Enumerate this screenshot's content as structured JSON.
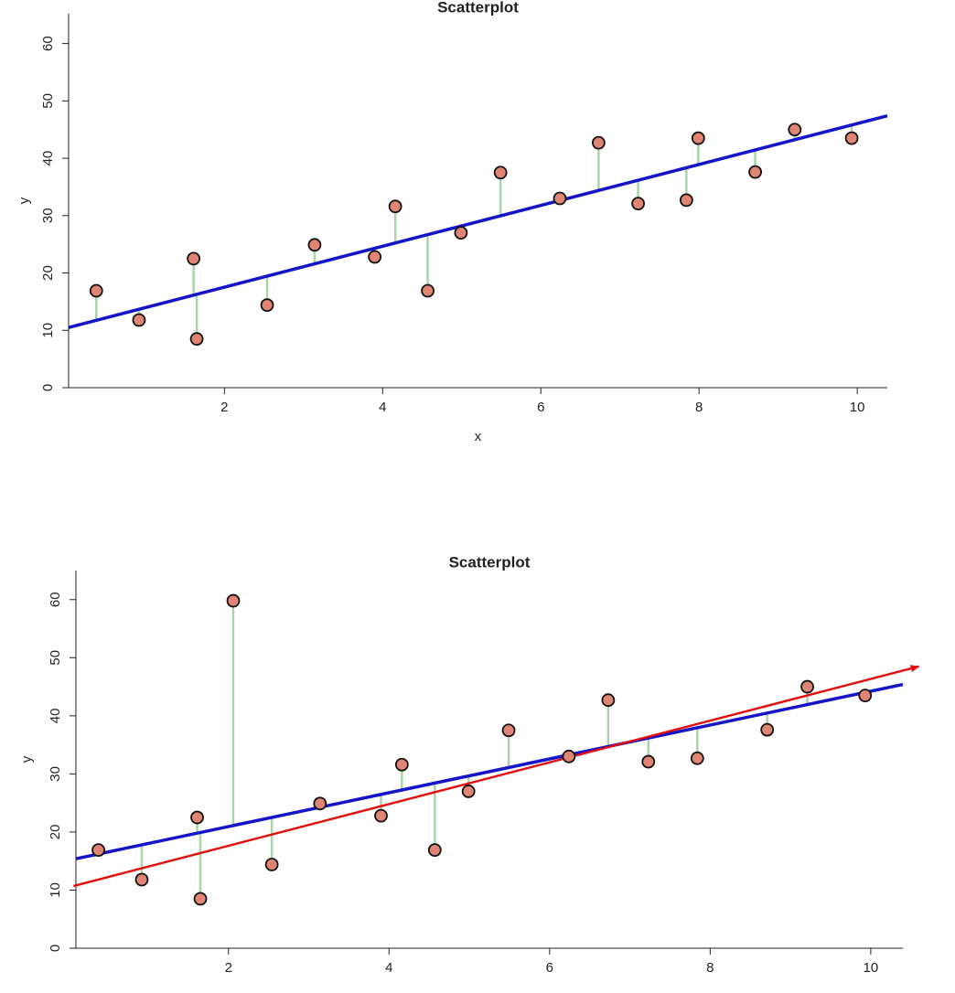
{
  "chart_data": [
    {
      "type": "scatter",
      "title": "Scatterplot",
      "x_label": "x",
      "y_label": "y",
      "xlim": [
        0.03,
        10.38
      ],
      "ylim": [
        0,
        65.2
      ],
      "xticks": [
        2,
        4,
        6,
        8,
        10
      ],
      "yticks": [
        0,
        10,
        20,
        30,
        40,
        50,
        60
      ],
      "series": [
        {
          "color": "#e08474",
          "x": [
            0.38,
            0.92,
            1.61,
            1.65,
            2.54,
            3.14,
            3.9,
            4.16,
            4.57,
            4.99,
            5.49,
            6.24,
            6.73,
            7.23,
            7.84,
            7.99,
            8.71,
            9.21,
            9.93
          ],
          "values": [
            16.9,
            11.8,
            22.5,
            8.5,
            14.4,
            24.9,
            22.8,
            31.6,
            16.9,
            27.0,
            37.5,
            33.0,
            42.7,
            32.1,
            32.7,
            43.5,
            37.6,
            45.0,
            43.5
          ]
        }
      ],
      "lines": [
        {
          "color": "#1414c8",
          "x": [
            0.03,
            10.38
          ],
          "values": [
            10.5,
            47.4
          ]
        }
      ],
      "residual_color": "#a8d4a8"
    },
    {
      "type": "scatter",
      "title": "Scatterplot",
      "y_label": "y",
      "xlim": [
        0.1,
        10.4
      ],
      "ylim": [
        0,
        65.0
      ],
      "xticks": [
        2,
        4,
        6,
        8,
        10
      ],
      "yticks": [
        0,
        10,
        20,
        30,
        40,
        50,
        60
      ],
      "series": [
        {
          "color": "#e08474",
          "x": [
            0.38,
            0.92,
            1.61,
            1.65,
            2.06,
            2.54,
            3.14,
            3.9,
            4.16,
            4.57,
            4.99,
            5.49,
            6.24,
            6.73,
            7.23,
            7.84,
            8.71,
            9.21,
            9.93
          ],
          "values": [
            16.9,
            11.8,
            22.5,
            8.5,
            59.8,
            14.4,
            24.9,
            22.8,
            31.6,
            16.9,
            27.0,
            37.5,
            33.0,
            42.7,
            32.1,
            32.7,
            37.6,
            45.0,
            43.5
          ]
        }
      ],
      "lines": [
        {
          "color": "#1414c8",
          "x": [
            0.1,
            10.4
          ],
          "values": [
            15.4,
            45.4
          ]
        },
        {
          "color": "#e01010",
          "x": [
            0.07,
            10.6
          ],
          "values": [
            10.7,
            48.5
          ],
          "arrow": true
        }
      ],
      "residual_color": "#a8d4a8"
    }
  ]
}
